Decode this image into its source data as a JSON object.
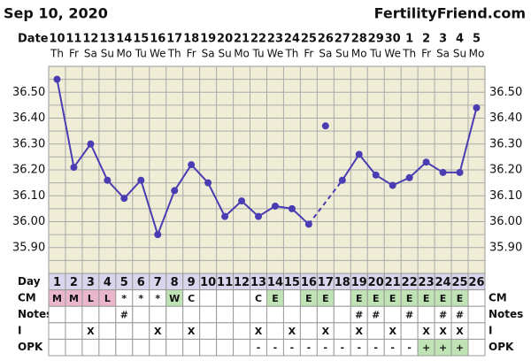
{
  "header": {
    "date": "Sep 10, 2020",
    "site": "FertilityFriend.com"
  },
  "chart_data": {
    "type": "line",
    "date_label": "Date",
    "dates": [
      10,
      11,
      12,
      13,
      14,
      15,
      16,
      17,
      18,
      19,
      20,
      21,
      22,
      23,
      24,
      25,
      26,
      27,
      28,
      29,
      30,
      1,
      2,
      3,
      4,
      5
    ],
    "weekdays": [
      "Th",
      "Fr",
      "Sa",
      "Su",
      "Mo",
      "Tu",
      "We",
      "Th",
      "Fr",
      "Sa",
      "Su",
      "Mo",
      "Tu",
      "We",
      "Th",
      "Fr",
      "Sa",
      "Su",
      "Mo",
      "Tu",
      "We",
      "Th",
      "Fr",
      "Sa",
      "Su",
      "Mo"
    ],
    "days": [
      1,
      2,
      3,
      4,
      5,
      6,
      7,
      8,
      9,
      10,
      11,
      12,
      13,
      14,
      15,
      16,
      17,
      18,
      19,
      20,
      21,
      22,
      23,
      24,
      25,
      26
    ],
    "values": [
      36.55,
      36.21,
      36.3,
      36.16,
      36.09,
      36.16,
      35.95,
      36.12,
      36.22,
      36.15,
      36.02,
      36.08,
      36.02,
      36.06,
      36.05,
      35.99,
      36.37,
      36.16,
      36.26,
      36.18,
      36.14,
      36.17,
      36.23,
      36.19,
      36.19,
      36.44
    ],
    "discarded_days": [
      17
    ],
    "color": "#4a3db3",
    "ylim": [
      35.8,
      36.6
    ],
    "yticks": [
      {
        "value": 35.9,
        "label": "35.90"
      },
      {
        "value": 36.0,
        "label": "36.00"
      },
      {
        "value": 36.1,
        "label": "36.10"
      },
      {
        "value": 36.2,
        "label": "36.20"
      },
      {
        "value": 36.3,
        "label": "36.30"
      },
      {
        "value": 36.4,
        "label": "36.40"
      },
      {
        "value": 36.5,
        "label": "36.50"
      }
    ],
    "minor_yticks": [
      35.85,
      35.95,
      36.05,
      36.15,
      36.25,
      36.35,
      36.45,
      36.55
    ],
    "grid": true
  },
  "table": {
    "row_labels": {
      "day": "Day",
      "cm": "CM",
      "notes": "Notes",
      "intercourse": "I",
      "opk": "OPK"
    },
    "cm": [
      "M",
      "M",
      "L",
      "L",
      "*",
      "*",
      "*",
      "W",
      "C",
      null,
      null,
      null,
      "C",
      "E",
      null,
      "E",
      "E",
      null,
      "E",
      "E",
      "E",
      "E",
      "E",
      "E",
      "E",
      null
    ],
    "notes": [
      null,
      null,
      null,
      null,
      "#",
      null,
      null,
      null,
      null,
      null,
      null,
      null,
      null,
      null,
      null,
      null,
      null,
      null,
      "#",
      "#",
      null,
      "#",
      null,
      "#",
      "#",
      null
    ],
    "intercourse": [
      null,
      null,
      "X",
      null,
      null,
      null,
      "X",
      null,
      "X",
      null,
      null,
      null,
      "X",
      null,
      "X",
      null,
      "X",
      null,
      "X",
      null,
      "X",
      null,
      "X",
      "X",
      "X",
      null
    ],
    "opk": [
      null,
      null,
      null,
      null,
      null,
      null,
      null,
      null,
      null,
      null,
      null,
      null,
      "-",
      "-",
      "-",
      "-",
      "-",
      "-",
      "-",
      "-",
      "-",
      "-",
      "+",
      "+",
      "+",
      null
    ],
    "cm_colors": {
      "M": "#eab6cc",
      "L": "#eab6cc",
      "W": "#bfe3b4",
      "E": "#bfe3b4"
    },
    "opk_colors": {
      "+": "#bfe3b4"
    }
  }
}
